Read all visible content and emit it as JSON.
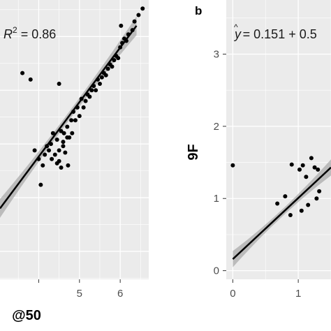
{
  "chart_data": [
    {
      "panel_label": "",
      "type": "scatter",
      "annotation": {
        "prefix": "R",
        "sup": "2",
        "suffix": " = 0.86"
      },
      "xlabel": "@50",
      "ylabel": "",
      "xlim": [
        3.05,
        6.7
      ],
      "ylim": [
        0.62,
        1.92
      ],
      "x_ticks": [
        4,
        5,
        6
      ],
      "x_tick_labels": [
        "",
        "5",
        "6"
      ],
      "y_ticks": [],
      "grid": true,
      "regression": {
        "x": [
          3.05,
          6.4
        ],
        "y": [
          0.95,
          1.8
        ]
      },
      "ci_half_width": 0.035,
      "points": [
        [
          3.6,
          1.58
        ],
        [
          3.8,
          1.55
        ],
        [
          3.9,
          1.22
        ],
        [
          4.0,
          1.18
        ],
        [
          4.05,
          1.06
        ],
        [
          4.1,
          1.15
        ],
        [
          4.15,
          1.2
        ],
        [
          4.2,
          1.24
        ],
        [
          4.25,
          1.22
        ],
        [
          4.3,
          1.25
        ],
        [
          4.32,
          1.18
        ],
        [
          4.35,
          1.3
        ],
        [
          4.4,
          1.2
        ],
        [
          4.45,
          1.27
        ],
        [
          4.5,
          1.22
        ],
        [
          4.5,
          1.53
        ],
        [
          4.55,
          1.14
        ],
        [
          4.6,
          1.24
        ],
        [
          4.62,
          1.3
        ],
        [
          4.65,
          1.21
        ],
        [
          4.7,
          1.33
        ],
        [
          4.72,
          1.15
        ],
        [
          4.75,
          1.28
        ],
        [
          4.8,
          1.36
        ],
        [
          4.82,
          1.3
        ],
        [
          4.85,
          1.4
        ],
        [
          4.9,
          1.36
        ],
        [
          4.95,
          1.42
        ],
        [
          5.0,
          1.38
        ],
        [
          5.05,
          1.46
        ],
        [
          5.1,
          1.42
        ],
        [
          5.15,
          1.45
        ],
        [
          5.2,
          1.48
        ],
        [
          5.25,
          1.47
        ],
        [
          5.3,
          1.5
        ],
        [
          5.35,
          1.52
        ],
        [
          5.4,
          1.5
        ],
        [
          5.45,
          1.55
        ],
        [
          5.5,
          1.53
        ],
        [
          5.55,
          1.56
        ],
        [
          5.6,
          1.58
        ],
        [
          5.65,
          1.57
        ],
        [
          5.7,
          1.6
        ],
        [
          5.75,
          1.62
        ],
        [
          5.8,
          1.61
        ],
        [
          5.85,
          1.64
        ],
        [
          5.9,
          1.66
        ],
        [
          5.95,
          1.65
        ],
        [
          6.0,
          1.7
        ],
        [
          6.05,
          1.72
        ],
        [
          6.1,
          1.74
        ],
        [
          6.15,
          1.73
        ],
        [
          6.2,
          1.76
        ],
        [
          6.3,
          1.78
        ],
        [
          6.35,
          1.82
        ],
        [
          6.45,
          1.85
        ],
        [
          6.55,
          1.88
        ],
        [
          6.02,
          1.8
        ],
        [
          4.45,
          1.16
        ],
        [
          4.5,
          1.17
        ],
        [
          4.6,
          1.26
        ],
        [
          4.7,
          1.28
        ],
        [
          4.55,
          1.31
        ]
      ]
    },
    {
      "panel_label": "b",
      "type": "scatter",
      "annotation": {
        "prefix": "y",
        "hat": "^",
        "suffix": " = 0.151 + 0.5"
      },
      "xlabel": "",
      "ylabel": "9F",
      "xlim": [
        -0.1,
        1.5
      ],
      "ylim": [
        -0.12,
        3.75
      ],
      "x_ticks": [
        0,
        1
      ],
      "x_tick_labels": [
        "0",
        "1"
      ],
      "y_ticks": [
        0,
        1,
        2,
        3
      ],
      "y_tick_labels": [
        "0",
        "1",
        "2",
        "3"
      ],
      "grid": true,
      "regression": {
        "x": [
          0.0,
          1.5
        ],
        "y": [
          0.16,
          1.43
        ]
      },
      "ci_half_width": 0.09,
      "points": [
        [
          0.0,
          1.46
        ],
        [
          0.68,
          0.93
        ],
        [
          0.8,
          1.03
        ],
        [
          0.88,
          0.77
        ],
        [
          0.9,
          1.47
        ],
        [
          1.02,
          1.4
        ],
        [
          1.05,
          0.83
        ],
        [
          1.07,
          1.46
        ],
        [
          1.12,
          1.3
        ],
        [
          1.15,
          0.91
        ],
        [
          1.2,
          1.56
        ],
        [
          1.25,
          1.43
        ],
        [
          1.3,
          1.4
        ],
        [
          1.32,
          1.1
        ],
        [
          1.28,
          1.0
        ]
      ]
    }
  ]
}
